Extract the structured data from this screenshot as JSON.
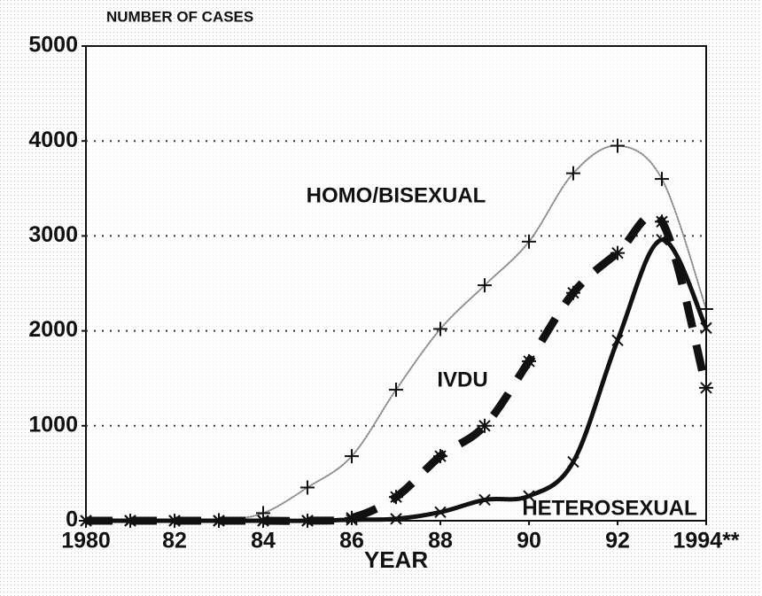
{
  "chart_data": {
    "type": "line",
    "ylabel": "NUMBER OF CASES",
    "xlabel": "YEAR",
    "xlim": [
      1980,
      1994
    ],
    "xticks": [
      1980,
      {
        "value": 1982,
        "label": "82"
      },
      {
        "value": 1984,
        "label": "84"
      },
      {
        "value": 1986,
        "label": "86"
      },
      {
        "value": 1988,
        "label": "88"
      },
      {
        "value": 1990,
        "label": "90"
      },
      {
        "value": 1992,
        "label": "92"
      },
      {
        "value": 1994,
        "label": "1994**"
      }
    ],
    "ylim": [
      0,
      5000
    ],
    "yticks": [
      0,
      1000,
      2000,
      3000,
      4000,
      5000
    ],
    "grid": true,
    "x": [
      1980,
      1981,
      1982,
      1983,
      1984,
      1985,
      1986,
      1987,
      1988,
      1989,
      1990,
      1991,
      1992,
      1993,
      1994
    ],
    "series": [
      {
        "name": "HOMO/BISEXUAL",
        "color": "#888888",
        "marker": "+",
        "line_style": "dotted",
        "values": [
          0,
          0,
          0,
          5,
          80,
          350,
          680,
          1380,
          2020,
          2480,
          2940,
          3660,
          3950,
          3600,
          2230
        ]
      },
      {
        "name": "IVDU",
        "color": "#111111",
        "marker": "*",
        "line_style": "dashed",
        "values": [
          0,
          0,
          0,
          0,
          0,
          0,
          30,
          250,
          680,
          1000,
          1680,
          2400,
          2820,
          3150,
          1400
        ]
      },
      {
        "name": "HETEROSEXUAL",
        "color": "#111111",
        "marker": "x",
        "line_style": "solid",
        "values": [
          0,
          0,
          0,
          0,
          0,
          0,
          10,
          20,
          90,
          220,
          260,
          620,
          1900,
          2960,
          2030
        ]
      }
    ]
  }
}
